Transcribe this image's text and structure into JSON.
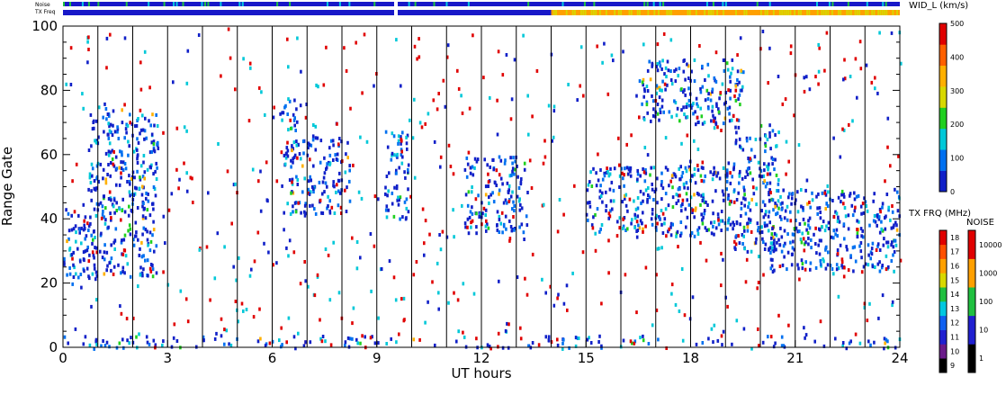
{
  "chart_data": {
    "type": "heatmap",
    "xlabel": "UT hours",
    "ylabel": "Range Gate",
    "xlim": [
      0,
      24
    ],
    "ylim": [
      0,
      100
    ],
    "x_ticks": [
      "0",
      "3",
      "6",
      "9",
      "12",
      "15",
      "18",
      "21",
      "24"
    ],
    "y_ticks": [
      "0",
      "20",
      "40",
      "60",
      "80",
      "100"
    ],
    "strip_labels": [
      "Noise",
      "TX Freq"
    ],
    "colorbars": {
      "wid": {
        "title": "WID_L (km/s)",
        "ticks": [
          "0",
          "100",
          "200",
          "300",
          "400",
          "500"
        ],
        "colors": [
          "#1020c8",
          "#0070f0",
          "#00c8d8",
          "#20d020",
          "#d8d800",
          "#ffb000",
          "#ff6000",
          "#e00000"
        ]
      },
      "txfreq": {
        "title": "TX FRQ (MHz)",
        "ticks": [
          "9",
          "10",
          "11",
          "12",
          "13",
          "14",
          "15",
          "16",
          "17",
          "18"
        ],
        "colors": [
          "#000000",
          "#6a1a8a",
          "#2020d0",
          "#1060f0",
          "#00c8e0",
          "#20c040",
          "#d8d800",
          "#ffa000",
          "#ff5000",
          "#e00000"
        ]
      },
      "noise": {
        "title": "NOISE",
        "ticks": [
          "1",
          "10",
          "100",
          "1000",
          "10000"
        ],
        "colors": [
          "#000000",
          "#2020d0",
          "#20c040",
          "#ffa000",
          "#e00000"
        ]
      }
    },
    "vertical_lines_ut": [
      1,
      2,
      3,
      4,
      5,
      6,
      7,
      8,
      9,
      10,
      11,
      12,
      13,
      14,
      15,
      16,
      17,
      18,
      19,
      20,
      21,
      22,
      23
    ],
    "tx_freq_change_ut": 14,
    "echo_regions": [
      {
        "ut": [
          0,
          0.7
        ],
        "gates": [
          20,
          45
        ],
        "note": "low"
      },
      {
        "ut": [
          0.7,
          2.7
        ],
        "gates": [
          22,
          75
        ],
        "note": "rising streaks"
      },
      {
        "ut": [
          6.2,
          6.7
        ],
        "gates": [
          68,
          78
        ]
      },
      {
        "ut": [
          6.3,
          8.2
        ],
        "gates": [
          42,
          66
        ]
      },
      {
        "ut": [
          9.2,
          9.9
        ],
        "gates": [
          40,
          68
        ]
      },
      {
        "ut": [
          11.5,
          13.3
        ],
        "gates": [
          36,
          60
        ]
      },
      {
        "ut": [
          15.0,
          19.2
        ],
        "gates": [
          35,
          57
        ]
      },
      {
        "ut": [
          16.5,
          19.5
        ],
        "gates": [
          70,
          90
        ]
      },
      {
        "ut": [
          19.2,
          20.5
        ],
        "gates": [
          30,
          70
        ]
      },
      {
        "ut": [
          20.2,
          24.0
        ],
        "gates": [
          24,
          50
        ]
      },
      {
        "ut": [
          0,
          24
        ],
        "gates": [
          0,
          4
        ],
        "note": "ground band"
      }
    ]
  }
}
